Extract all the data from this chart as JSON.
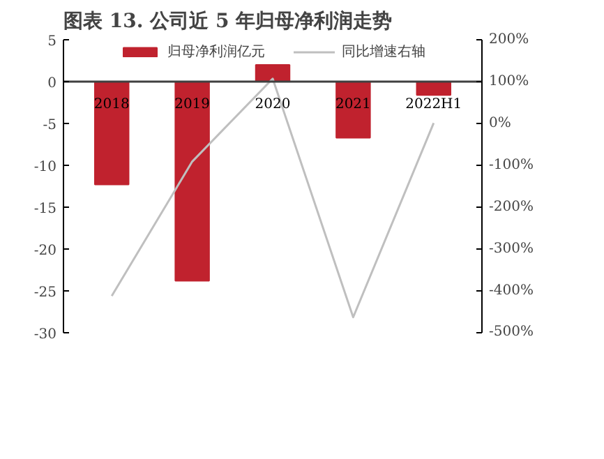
{
  "chart_data": {
    "type": "bar",
    "title": "图表 13. 公司近 5 年归母净利润走势",
    "categories": [
      "2018",
      "2019",
      "2020",
      "2021",
      "2022H1"
    ],
    "series": [
      {
        "name": "归母净利润亿元",
        "color": "#c0222e",
        "values": [
          -12.3,
          -23.8,
          2.0,
          -6.7,
          -1.6
        ]
      },
      {
        "name": "同比增速右轴",
        "type": "line",
        "axis": "y2",
        "color": "#bfbfbf",
        "values": [
          -412,
          -91,
          107,
          -463,
          1
        ]
      }
    ],
    "ylim": [
      -30,
      5
    ],
    "yticks": [
      -30,
      -25,
      -20,
      -15,
      -10,
      -5,
      0,
      5
    ],
    "y2lim": [
      -500,
      200
    ],
    "y2ticks": [
      {
        "value": -500,
        "label": "-500%"
      },
      {
        "value": -400,
        "label": "-400%"
      },
      {
        "value": -300,
        "label": "-300%"
      },
      {
        "value": -200,
        "label": "-200%"
      },
      {
        "value": -100,
        "label": "-100%"
      },
      {
        "value": 0,
        "label": "0%"
      },
      {
        "value": 100,
        "label": "100%"
      },
      {
        "value": 200,
        "label": "200%"
      }
    ],
    "legend": "top",
    "grid": false
  }
}
